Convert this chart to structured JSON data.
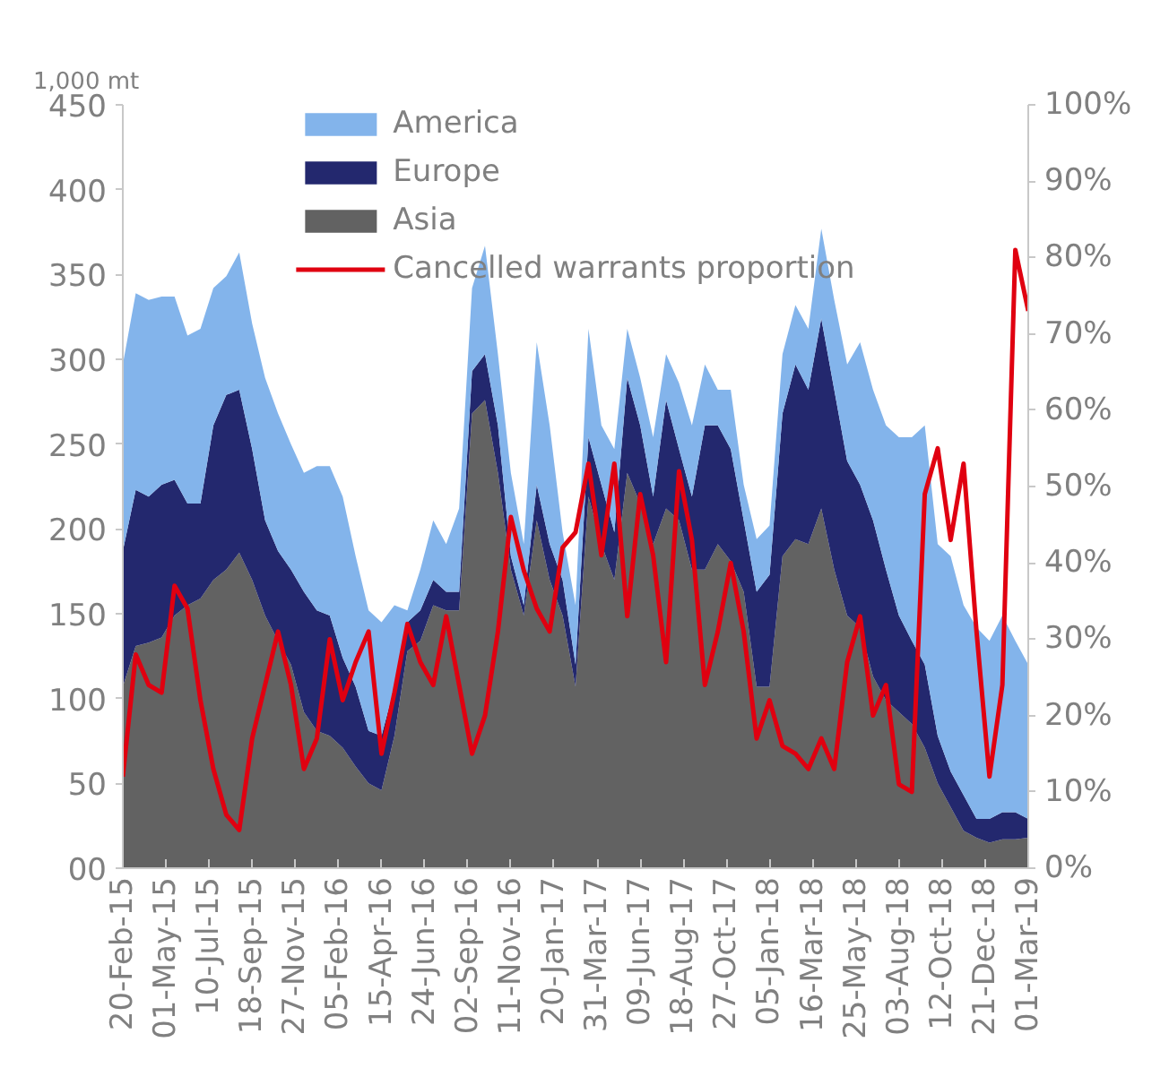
{
  "chart_data": {
    "type": "area",
    "stacked": true,
    "ylabel": "1,000 mt",
    "legend": "top",
    "grid": false,
    "x": [
      "2015-02-20",
      "2015-03-13",
      "2015-04-03",
      "2015-04-24",
      "2015-05-15",
      "2015-06-05",
      "2015-06-26",
      "2015-07-17",
      "2015-08-07",
      "2015-08-28",
      "2015-09-18",
      "2015-10-09",
      "2015-10-30",
      "2015-11-20",
      "2015-12-11",
      "2016-01-01",
      "2016-01-22",
      "2016-02-12",
      "2016-03-04",
      "2016-03-25",
      "2016-04-15",
      "2016-05-06",
      "2016-05-27",
      "2016-06-17",
      "2016-07-08",
      "2016-07-29",
      "2016-08-19",
      "2016-09-09",
      "2016-09-30",
      "2016-10-21",
      "2016-11-11",
      "2016-12-02",
      "2016-12-23",
      "2017-01-13",
      "2017-02-03",
      "2017-02-24",
      "2017-03-17",
      "2017-04-07",
      "2017-04-28",
      "2017-05-19",
      "2017-06-09",
      "2017-06-30",
      "2017-07-21",
      "2017-08-11",
      "2017-09-01",
      "2017-09-22",
      "2017-10-13",
      "2017-11-03",
      "2017-11-24",
      "2017-12-15",
      "2018-01-05",
      "2018-01-26",
      "2018-02-16",
      "2018-03-09",
      "2018-03-30",
      "2018-04-20",
      "2018-05-11",
      "2018-06-01",
      "2018-06-22",
      "2018-07-13",
      "2018-08-03",
      "2018-08-24",
      "2018-09-14",
      "2018-10-05",
      "2018-10-26",
      "2018-11-16",
      "2018-12-07",
      "2018-12-28",
      "2019-01-18",
      "2019-02-08",
      "2019-03-01"
    ],
    "xlim": [
      "2015-02-20",
      "2019-03-01"
    ],
    "xticks": [
      {
        "value": "2015-02-20",
        "label": "20-Feb-15"
      },
      {
        "value": "2015-05-01",
        "label": "01-May-15"
      },
      {
        "value": "2015-07-10",
        "label": "10-Jul-15"
      },
      {
        "value": "2015-09-18",
        "label": "18-Sep-15"
      },
      {
        "value": "2015-11-27",
        "label": "27-Nov-15"
      },
      {
        "value": "2016-02-05",
        "label": "05-Feb-16"
      },
      {
        "value": "2016-04-15",
        "label": "15-Apr-16"
      },
      {
        "value": "2016-06-24",
        "label": "24-Jun-16"
      },
      {
        "value": "2016-09-02",
        "label": "02-Sep-16"
      },
      {
        "value": "2016-11-11",
        "label": "11-Nov-16"
      },
      {
        "value": "2017-01-20",
        "label": "20-Jan-17"
      },
      {
        "value": "2017-03-31",
        "label": "31-Mar-17"
      },
      {
        "value": "2017-06-09",
        "label": "09-Jun-17"
      },
      {
        "value": "2017-08-18",
        "label": "18-Aug-17"
      },
      {
        "value": "2017-10-27",
        "label": "27-Oct-17"
      },
      {
        "value": "2018-01-05",
        "label": "05-Jan-18"
      },
      {
        "value": "2018-03-16",
        "label": "16-Mar-18"
      },
      {
        "value": "2018-05-25",
        "label": "25-May-18"
      },
      {
        "value": "2018-08-03",
        "label": "03-Aug-18"
      },
      {
        "value": "2018-10-12",
        "label": "12-Oct-18"
      },
      {
        "value": "2018-12-21",
        "label": "21-Dec-18"
      },
      {
        "value": "2019-03-01",
        "label": "01-Mar-19"
      }
    ],
    "ylim": [
      0,
      450
    ],
    "yticks": [
      {
        "value": 0,
        "label": "00"
      },
      50,
      100,
      150,
      200,
      250,
      300,
      350,
      400,
      450
    ],
    "y2lim": [
      0,
      100
    ],
    "y2ticks": [
      {
        "value": 0,
        "label": "0%"
      },
      {
        "value": 10,
        "label": "10%"
      },
      {
        "value": 20,
        "label": "20%"
      },
      {
        "value": 30,
        "label": "30%"
      },
      {
        "value": 40,
        "label": "40%"
      },
      {
        "value": 50,
        "label": "50%"
      },
      {
        "value": 60,
        "label": "60%"
      },
      {
        "value": 70,
        "label": "70%"
      },
      {
        "value": 80,
        "label": "80%"
      },
      {
        "value": 90,
        "label": "90%"
      },
      {
        "value": 100,
        "label": "100%"
      }
    ],
    "series": [
      {
        "name": "Asia",
        "color": "#626262",
        "values": [
          107,
          131,
          133,
          136,
          149,
          155,
          159,
          170,
          176,
          186,
          170,
          149,
          134,
          120,
          92,
          81,
          78,
          71,
          60,
          50,
          46,
          78,
          128,
          134,
          155,
          152,
          152,
          268,
          276,
          233,
          176,
          149,
          205,
          170,
          149,
          107,
          219,
          191,
          170,
          233,
          215,
          191,
          212,
          205,
          176,
          176,
          191,
          181,
          163,
          107,
          107,
          184,
          194,
          191,
          212,
          176,
          149,
          142,
          113,
          99,
          92,
          85,
          71,
          50,
          36,
          22,
          18,
          15,
          17,
          17,
          18
        ]
      },
      {
        "name": "Europe",
        "color": "#23286e",
        "values": [
          80,
          92,
          86,
          90,
          80,
          60,
          56,
          91,
          103,
          96,
          77,
          56,
          53,
          56,
          71,
          71,
          71,
          53,
          47,
          31,
          32,
          29,
          17,
          18,
          15,
          11,
          11,
          25,
          27,
          28,
          8,
          6,
          21,
          21,
          21,
          13,
          35,
          35,
          28,
          56,
          46,
          28,
          64,
          42,
          43,
          85,
          70,
          66,
          42,
          56,
          66,
          84,
          103,
          91,
          112,
          106,
          91,
          84,
          92,
          77,
          57,
          49,
          49,
          28,
          21,
          21,
          11,
          14,
          16,
          16,
          11
        ]
      },
      {
        "name": "America",
        "color": "#83b4eb",
        "values": [
          110,
          116,
          116,
          111,
          108,
          99,
          103,
          81,
          70,
          81,
          74,
          84,
          81,
          74,
          70,
          85,
          88,
          95,
          77,
          71,
          67,
          48,
          7,
          24,
          35,
          28,
          49,
          49,
          64,
          42,
          49,
          36,
          84,
          70,
          28,
          35,
          64,
          35,
          49,
          29,
          28,
          35,
          27,
          39,
          42,
          36,
          21,
          35,
          21,
          31,
          29,
          35,
          35,
          36,
          53,
          53,
          57,
          84,
          77,
          85,
          105,
          120,
          141,
          113,
          127,
          112,
          113,
          105,
          116,
          101,
          91
        ]
      },
      {
        "name": "Cancelled warrants proportion",
        "type": "line",
        "axis": "y2",
        "color": "#e00010",
        "values": [
          12,
          28,
          24,
          23,
          37,
          34,
          22,
          13,
          7,
          5,
          17,
          24,
          31,
          24,
          13,
          17,
          30,
          22,
          27,
          31,
          15,
          23,
          32,
          27,
          24,
          33,
          24,
          15,
          20,
          31,
          46,
          39,
          34,
          31,
          42,
          44,
          53,
          41,
          53,
          33,
          49,
          41,
          27,
          52,
          43,
          24,
          31,
          40,
          31,
          17,
          22,
          16,
          15,
          13,
          17,
          13,
          27,
          33,
          20,
          24,
          11,
          10,
          49,
          55,
          43,
          53,
          31,
          12,
          24,
          81,
          73
        ]
      }
    ]
  }
}
